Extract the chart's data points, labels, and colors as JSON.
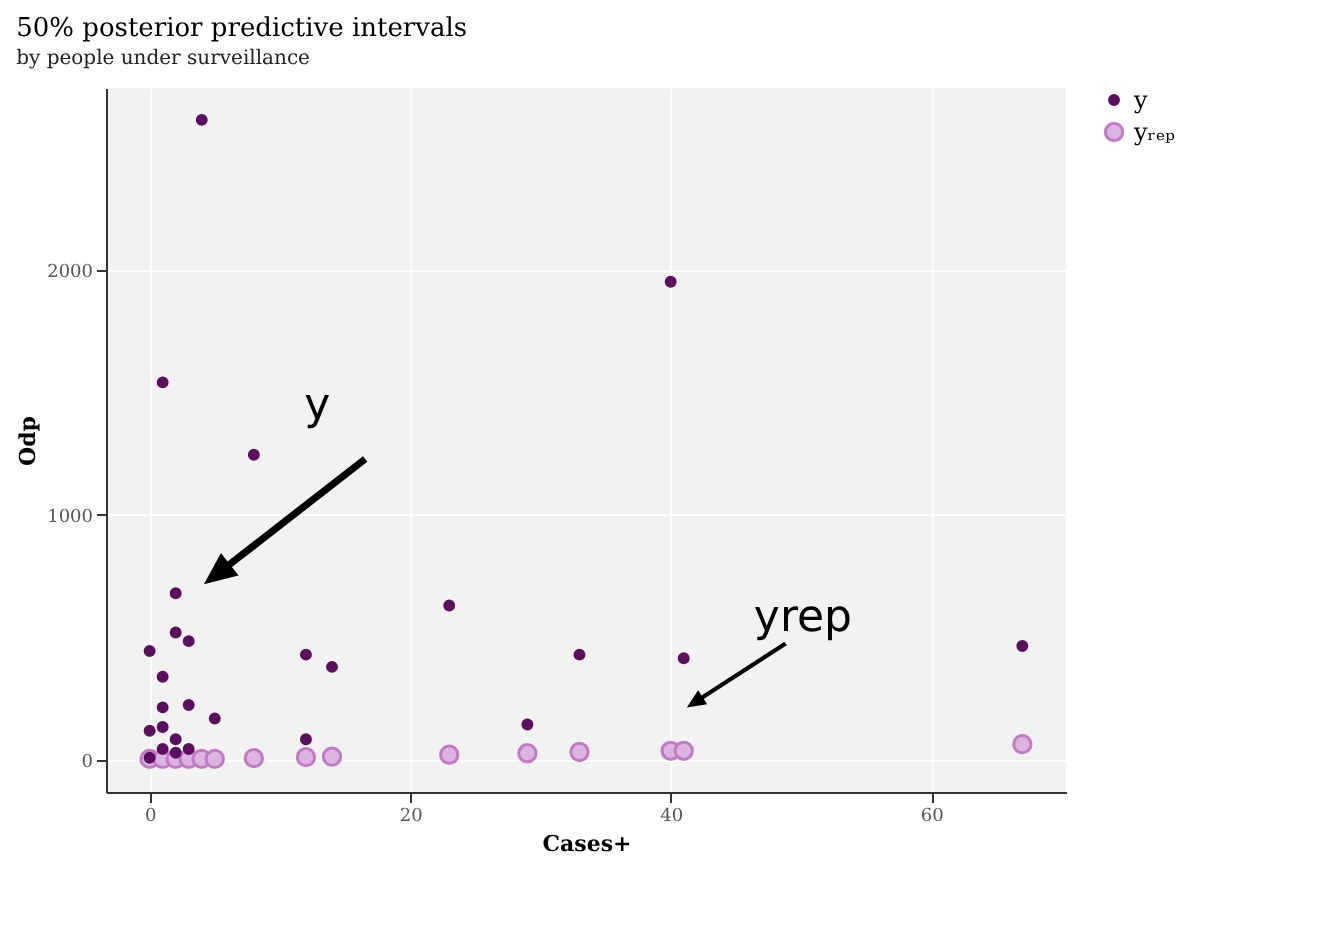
{
  "chart_data": {
    "type": "scatter",
    "title": "50% posterior predictive intervals",
    "subtitle": "by people under surveillance",
    "xlabel": "Cases+",
    "ylabel": "Odp",
    "xlim": [
      -3.35,
      70.35
    ],
    "ylim": [
      -130,
      2740
    ],
    "xticks": [
      0,
      20,
      40,
      60
    ],
    "yticks": [
      0,
      1000,
      2000
    ],
    "grid": true,
    "legend": "right",
    "marker": "circle",
    "series": [
      {
        "name": "y",
        "color": "#5c0f5f",
        "x": [
          4,
          1,
          8,
          2,
          2,
          3,
          0,
          1,
          1,
          3,
          5,
          0,
          1,
          2,
          1,
          2,
          3,
          0,
          12,
          14,
          12,
          23,
          29,
          40,
          33,
          41,
          67
        ],
        "values": [
          2610,
          1540,
          1245,
          680,
          520,
          485,
          445,
          340,
          215,
          225,
          170,
          120,
          135,
          85,
          45,
          30,
          45,
          10,
          430,
          380,
          85,
          630,
          145,
          1950,
          430,
          415,
          465
        ]
      },
      {
        "name": "yᵣₑₚ",
        "color": "#dcb4e0",
        "x": [
          0,
          1,
          2,
          3,
          4,
          5,
          8,
          12,
          14,
          23,
          29,
          33,
          40,
          41,
          67
        ],
        "values": [
          5,
          5,
          5,
          5,
          5,
          5,
          8,
          12,
          14,
          22,
          28,
          33,
          38,
          38,
          65
        ]
      }
    ],
    "annotations": [
      "y",
      "yrep"
    ]
  }
}
